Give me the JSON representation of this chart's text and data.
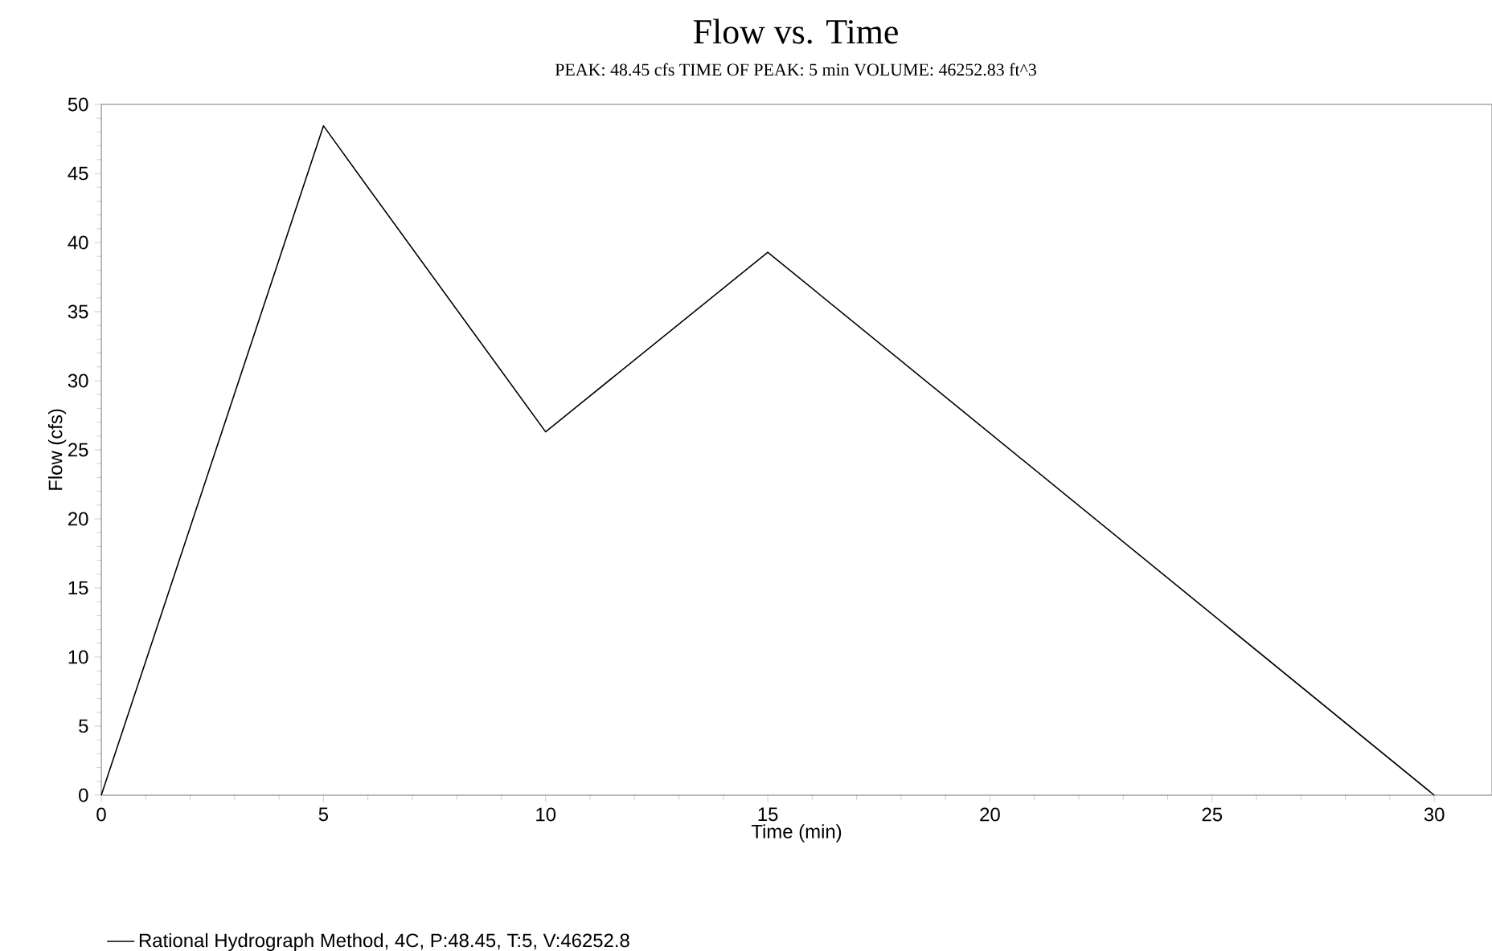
{
  "chart_data": {
    "type": "line",
    "title": "Flow vs. Time",
    "subtitle": "PEAK: 48.45 cfs  TIME OF PEAK: 5 min  VOLUME: 46252.83 ft^3",
    "xlabel": "Time (min)",
    "ylabel": "Flow (cfs)",
    "series": [
      {
        "name": "Rational Hydrograph Method, 4C, P:48.45, T:5, V:46252.8",
        "color": "#000000",
        "x": [
          0,
          5,
          6,
          10,
          15,
          30
        ],
        "values": [
          0,
          48.45,
          44,
          26.3,
          39.3,
          0
        ]
      }
    ],
    "xlim": [
      0,
      31.3
    ],
    "ylim": [
      0,
      50
    ],
    "xticks": [
      0,
      5,
      10,
      15,
      20,
      25,
      30
    ],
    "yticks": [
      0,
      5,
      10,
      15,
      20,
      25,
      30,
      35,
      40,
      45,
      50
    ],
    "grid": false,
    "legend": "bottom left",
    "marker": "none",
    "line_style": "solid"
  }
}
